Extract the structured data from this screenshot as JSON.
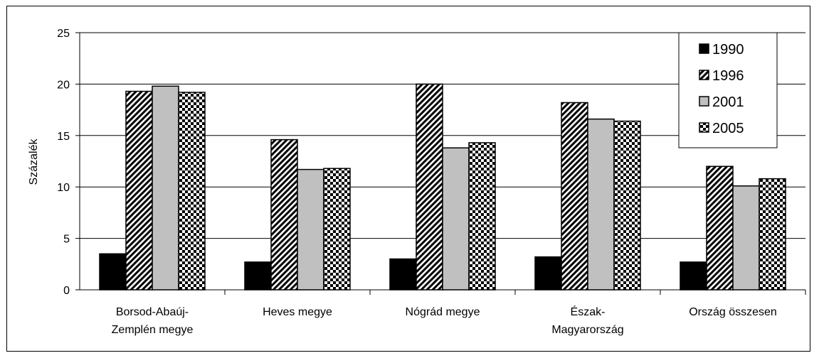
{
  "chart_data": {
    "type": "bar",
    "ylabel": "Százalék",
    "xlabel": "",
    "ylim": [
      0,
      25
    ],
    "yticks": [
      0,
      5,
      10,
      15,
      20,
      25
    ],
    "grid": true,
    "legend_position": "top-right",
    "categories": [
      [
        "Borsod-Abaúj-",
        "Zemplén megye"
      ],
      [
        "Heves megye"
      ],
      [
        "Nógrád megye"
      ],
      [
        "Észak-",
        "Magyarország"
      ],
      [
        "Ország összesen"
      ]
    ],
    "series": [
      {
        "name": "1990",
        "pattern": "solid-black",
        "values": [
          3.5,
          2.7,
          3.0,
          3.2,
          2.7
        ]
      },
      {
        "name": "1996",
        "pattern": "diagonal-hatch",
        "values": [
          19.3,
          14.6,
          20.0,
          18.2,
          12.0
        ]
      },
      {
        "name": "2001",
        "pattern": "solid-gray",
        "values": [
          19.8,
          11.7,
          13.8,
          16.6,
          10.1
        ]
      },
      {
        "name": "2005",
        "pattern": "checkerboard",
        "values": [
          19.2,
          11.8,
          14.3,
          16.4,
          10.8
        ]
      }
    ],
    "colors": {
      "solid-black": "#000000",
      "solid-gray": "#c0c0c0",
      "grid": "#000000"
    }
  }
}
